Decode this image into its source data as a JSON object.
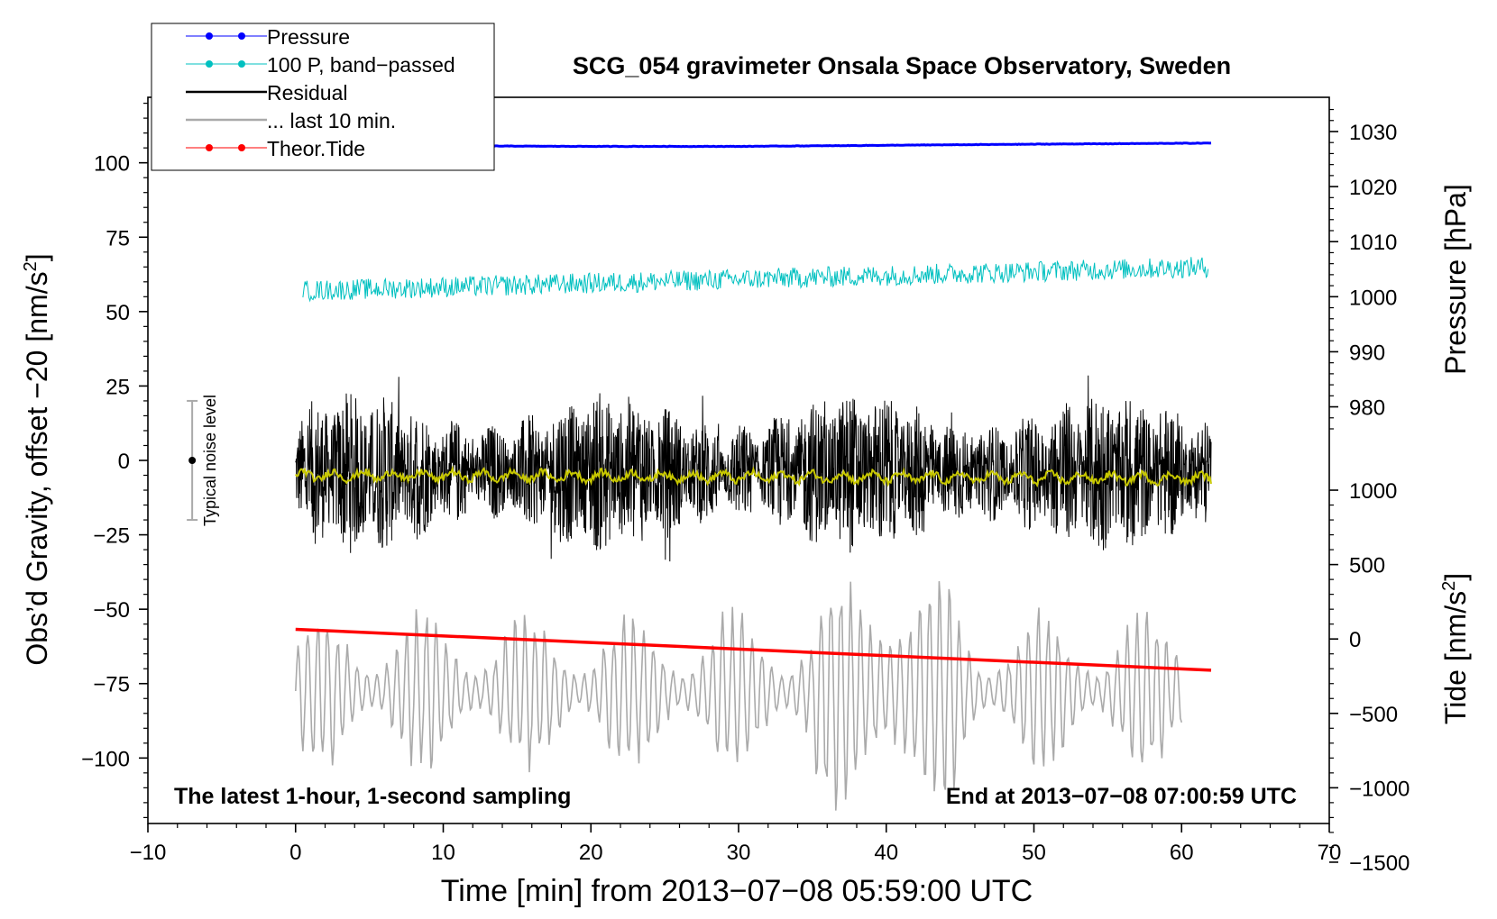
{
  "chart_data": {
    "type": "line",
    "title": "SCG_054 gravimeter Onsala Space Observatory, Sweden",
    "xlabel": "Time [min] from 2013−07−08 05:59:00 UTC",
    "ylabel_left": "Obs’d Gravity, offset −20 [nm/s",
    "ylabel_left_sup": "2",
    "ylabel_left_end": "]",
    "ylabel_pressure": "Pressure [hPa]",
    "ylabel_tide": "Tide [nm/s",
    "ylabel_tide_sup": "2",
    "ylabel_tide_end": "]",
    "xlim": [
      -10,
      70
    ],
    "ylim_left": [
      -122,
      122
    ],
    "x_ticks": [
      -10,
      0,
      10,
      20,
      30,
      40,
      50,
      60,
      70
    ],
    "x_tick_labels": [
      "−10",
      "0",
      "10",
      "20",
      "30",
      "40",
      "50",
      "60",
      "70"
    ],
    "y_left_ticks": [
      100,
      75,
      50,
      25,
      0,
      -25,
      -50,
      -75,
      -100
    ],
    "y_left_tick_labels": [
      "100",
      "75",
      "50",
      "25",
      "0",
      "−25",
      "−50",
      "−75",
      "−100"
    ],
    "pressure_axis": {
      "ticks": [
        1030,
        1020,
        1010,
        1000,
        990,
        980
      ],
      "tick_labels": [
        "1030",
        "1020",
        "1010",
        "1000",
        "990",
        "980"
      ],
      "left_value_at_1000hPa": 55,
      "left_units_per_hPa": 1.85
    },
    "tide_axis": {
      "ticks": [
        1000,
        500,
        0,
        -500,
        -1000,
        -1500
      ],
      "tick_labels": [
        "1000",
        "500",
        "0",
        "−500",
        "−1000",
        "−1500"
      ],
      "left_value_at_0": -60,
      "left_units_per_1000": 50
    },
    "legend_position": "top-left",
    "series": [
      {
        "name": "Pressure",
        "legend": "Pressure",
        "color": "#0000ff",
        "marker": true,
        "x": [
          0,
          10,
          20,
          30,
          40,
          50,
          62
        ],
        "pressure_hPa": [
          1027.6,
          1027.4,
          1027.3,
          1027.3,
          1027.5,
          1027.7,
          1027.9
        ]
      },
      {
        "name": "100 P, band-passed",
        "legend": "100 P, band−passed",
        "color": "#00c0c0",
        "marker": true,
        "x_range": [
          0.5,
          61.8
        ],
        "level_start": 57,
        "level_end": 65,
        "amplitude": 3.5
      },
      {
        "name": "Residual",
        "legend": "Residual",
        "color": "#000000",
        "marker": false,
        "x_range": [
          0,
          62
        ],
        "level": -4,
        "amplitude": 22
      },
      {
        "name": "Residual (smoothed)",
        "color": "#c8c800",
        "x_range": [
          0,
          62
        ],
        "level_start": -5,
        "level_end": -6,
        "amplitude": 2
      },
      {
        "name": "... last 10 min.",
        "legend": "... last 10 min.",
        "color": "#aaaaaa",
        "marker": false,
        "x_range": [
          0,
          60
        ],
        "tide_level": -350,
        "tide_amplitude": 600
      },
      {
        "name": "Theor.Tide",
        "legend": "Theor.Tide",
        "color": "#ff0000",
        "marker": true,
        "x": [
          0,
          62
        ],
        "tide": [
          65,
          -210
        ]
      }
    ],
    "noise_bar": {
      "label": "Typical noise level",
      "x": -7,
      "center": 0,
      "half_range": 20
    },
    "annotations": {
      "bottom_left": "The latest 1-hour, 1-second sampling",
      "bottom_right": "End at 2013−07−08 07:00:59 UTC"
    }
  }
}
